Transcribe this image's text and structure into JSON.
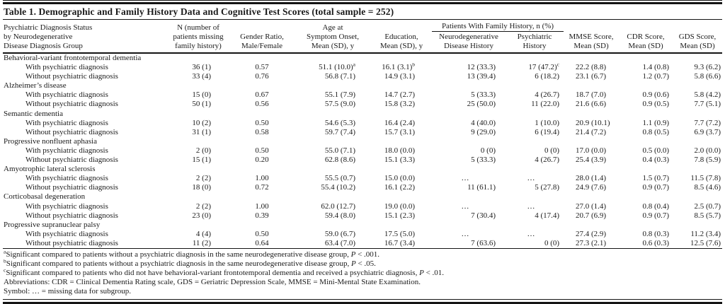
{
  "title": "Table 1. Demographic and Family History Data and Cognitive Test Scores (total sample = 252)",
  "table": {
    "headers": {
      "col1": "Psychiatric Diagnosis Status\nby Neurodegenerative\nDisease Diagnosis Group",
      "col2": "N (number of\npatients missing\nfamily history)",
      "col3": "Gender Ratio,\nMale/Female",
      "col4": "Age at\nSymptom Onset,\nMean (SD), y",
      "col5": "Education,\nMean (SD), y",
      "family_history_group": "Patients With Family History, n (%)",
      "col6": "Neurodegenerative\nDisease History",
      "col7": "Psychiatric\nHistory",
      "col8": "MMSE Score,\nMean (SD)",
      "col9": "CDR Score,\nMean (SD)",
      "col10": "GDS Score,\nMean (SD)"
    },
    "groups": [
      {
        "name": "Behavioral-variant frontotemporal dementia",
        "rows": [
          {
            "label": "With psychiatric diagnosis",
            "cells": [
              "36 (1)",
              "0.57",
              {
                "v": "51.1 (10.0)",
                "s": "a"
              },
              {
                "v": "16.1 (3.1)",
                "s": "b"
              },
              "12 (33.3)",
              {
                "v": "17 (47.2)",
                "s": "c"
              },
              "22.2 (8.8)",
              "1.4 (0.8)",
              "9.3 (6.2)"
            ]
          },
          {
            "label": "Without psychiatric diagnosis",
            "cells": [
              "33 (4)",
              "0.76",
              "56.8 (7.1)",
              "14.9 (3.1)",
              "13 (39.4)",
              "6 (18.2)",
              "23.1 (6.7)",
              "1.2 (0.7)",
              "5.8 (6.6)"
            ]
          }
        ]
      },
      {
        "name": "Alzheimer’s disease",
        "rows": [
          {
            "label": "With psychiatric diagnosis",
            "cells": [
              "15 (0)",
              "0.67",
              "55.1 (7.9)",
              "14.7 (2.7)",
              "5 (33.3)",
              "4 (26.7)",
              "18.7 (7.0)",
              "0.9 (0.6)",
              "5.8 (4.2)"
            ]
          },
          {
            "label": "Without psychiatric diagnosis",
            "cells": [
              "50 (1)",
              "0.56",
              "57.5 (9.0)",
              "15.8 (3.2)",
              "25 (50.0)",
              "11 (22.0)",
              "21.6 (6.6)",
              "0.9 (0.5)",
              "7.7 (5.1)"
            ]
          }
        ]
      },
      {
        "name": "Semantic dementia",
        "rows": [
          {
            "label": "With psychiatric diagnosis",
            "cells": [
              "10 (2)",
              "0.50",
              "54.6 (5.3)",
              "16.4 (2.4)",
              "4 (40.0)",
              "1 (10.0)",
              "20.9 (10.1)",
              "1.1 (0.9)",
              "7.7 (7.2)"
            ]
          },
          {
            "label": "Without psychiatric diagnosis",
            "cells": [
              "31 (1)",
              "0.58",
              "59.7 (7.4)",
              "15.7 (3.1)",
              "9 (29.0)",
              "6 (19.4)",
              "21.4 (7.2)",
              "0.8 (0.5)",
              "6.9 (3.7)"
            ]
          }
        ]
      },
      {
        "name": "Progressive nonfluent aphasia",
        "rows": [
          {
            "label": "With psychiatric diagnosis",
            "cells": [
              "2 (0)",
              "0.50",
              "55.0 (7.1)",
              "18.0 (0.0)",
              "0 (0)",
              "0 (0)",
              "17.0 (0.0)",
              "0.5 (0.0)",
              "2.0 (0.0)"
            ]
          },
          {
            "label": "Without psychiatric diagnosis",
            "cells": [
              "15 (1)",
              "0.20",
              "62.8 (8.6)",
              "15.1 (3.3)",
              "5 (33.3)",
              "4 (26.7)",
              "25.4 (3.9)",
              "0.4 (0.3)",
              "7.8 (5.9)"
            ]
          }
        ]
      },
      {
        "name": "Amyotrophic lateral sclerosis",
        "rows": [
          {
            "label": "With psychiatric diagnosis",
            "cells": [
              "2 (2)",
              "1.00",
              "55.5 (0.7)",
              "15.0 (0.0)",
              "…",
              "…",
              "28.0 (1.4)",
              "1.5 (0.7)",
              "11.5 (7.8)"
            ]
          },
          {
            "label": "Without psychiatric diagnosis",
            "cells": [
              "18 (0)",
              "0.72",
              "55.4 (10.2)",
              "16.1 (2.2)",
              "11 (61.1)",
              "5 (27.8)",
              "24.9 (7.6)",
              "0.9 (0.7)",
              "8.5 (4.6)"
            ]
          }
        ]
      },
      {
        "name": "Corticobasal degeneration",
        "rows": [
          {
            "label": "With psychiatric diagnosis",
            "cells": [
              "2 (2)",
              "1.00",
              "62.0 (12.7)",
              "19.0 (0.0)",
              "…",
              "…",
              "27.0 (1.4)",
              "0.8 (0.4)",
              "2.5 (0.7)"
            ]
          },
          {
            "label": "Without psychiatric diagnosis",
            "cells": [
              "23 (0)",
              "0.39",
              "59.4 (8.0)",
              "15.1 (2.3)",
              "7 (30.4)",
              "4 (17.4)",
              "20.7 (6.9)",
              "0.9 (0.7)",
              "8.5 (5.7)"
            ]
          }
        ]
      },
      {
        "name": "Progressive supranuclear palsy",
        "rows": [
          {
            "label": "With psychiatric diagnosis",
            "cells": [
              "4 (4)",
              "0.50",
              "59.0 (6.7)",
              "17.5 (5.0)",
              "…",
              "…",
              "27.4 (2.9)",
              "0.8 (0.3)",
              "11.2 (3.4)"
            ]
          },
          {
            "label": "Without psychiatric diagnosis",
            "cells": [
              "11 (2)",
              "0.64",
              "63.4 (7.0)",
              "16.7 (3.4)",
              "7 (63.6)",
              "0 (0)",
              "27.3 (2.1)",
              "0.6 (0.3)",
              "12.5 (7.6)"
            ]
          }
        ]
      }
    ]
  },
  "footnotes": [
    {
      "sup": "a",
      "text": "Significant compared to patients without a psychiatric diagnosis in the same neurodegenerative disease group, P < .001."
    },
    {
      "sup": "b",
      "text": "Significant compared to patients without a psychiatric diagnosis in the same neurodegenerative disease group, P < .05."
    },
    {
      "sup": "c",
      "text": "Significant compared to patients who did not have behavioral-variant frontotemporal dementia and received a psychiatric diagnosis, P < .01."
    },
    {
      "sup": "",
      "text": "Abbreviations: CDR = Clinical Dementia Rating scale, GDS = Geriatric Depression Scale, MMSE = Mini-Mental State Examination."
    },
    {
      "sup": "",
      "text": "Symbol: … = missing data for subgroup."
    }
  ]
}
